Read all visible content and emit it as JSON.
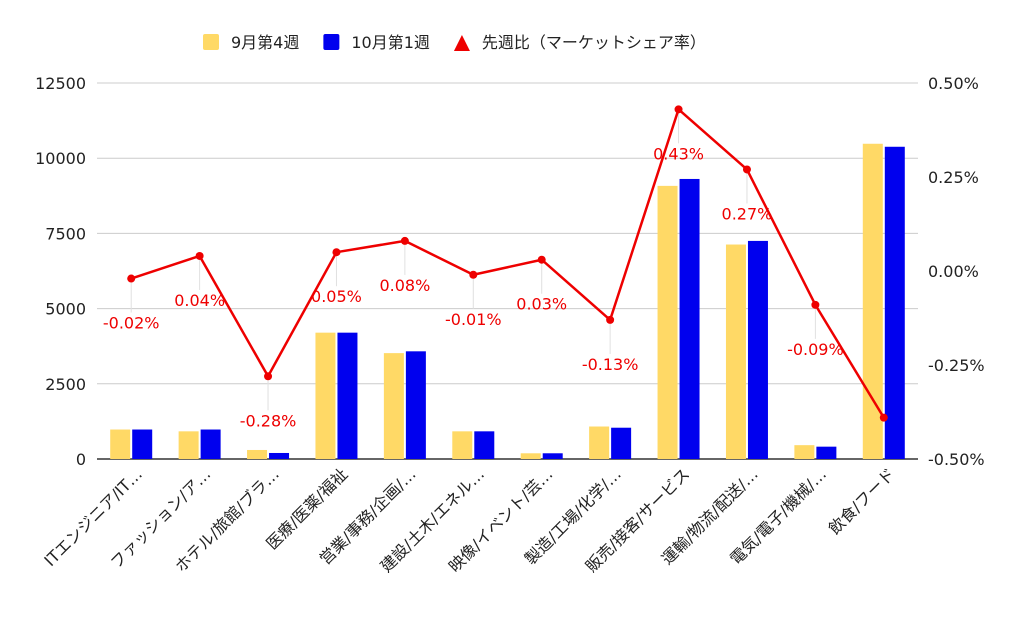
{
  "chart_data": {
    "type": "bar",
    "categories": [
      "ITエンジニア/IT…",
      "ファッション/ア…",
      "ホテル/旅館/ブラ…",
      "医療/医薬/福祉",
      "営業/事務/企画/…",
      "建設/土木/エネル…",
      "映像/イベント/芸…",
      "製造/工場/化学/…",
      "販売/接客/サービス",
      "運輸/物流/配送/…",
      "電気/電子/機械/…",
      "飲食/フード"
    ],
    "series": [
      {
        "name": "9月第4週",
        "type": "bar",
        "axis": "left",
        "color": "#FFD966",
        "values": [
          980,
          920,
          300,
          4200,
          3520,
          920,
          190,
          1080,
          9080,
          7130,
          460,
          10480
        ]
      },
      {
        "name": "10月第1週",
        "type": "bar",
        "axis": "left",
        "color": "#0000EE",
        "values": [
          980,
          980,
          200,
          4200,
          3580,
          920,
          190,
          1040,
          9310,
          7250,
          410,
          10380
        ]
      },
      {
        "name": "先週比（マーケットシェア率）",
        "type": "line",
        "axis": "right",
        "color": "#EE0000",
        "values": [
          -0.02,
          0.04,
          -0.28,
          0.05,
          0.08,
          -0.01,
          0.03,
          -0.13,
          0.43,
          0.27,
          -0.09,
          -0.39
        ],
        "labels": [
          "-0.02%",
          "0.04%",
          "-0.28%",
          "0.05%",
          "0.08%",
          "-0.01%",
          "0.03%",
          "-0.13%",
          "0.43%",
          "0.27%",
          "-0.09%",
          ""
        ]
      }
    ],
    "y_left": {
      "ticks": [
        "0",
        "2500",
        "5000",
        "7500",
        "10000",
        "12500"
      ],
      "min": 0,
      "max": 12500
    },
    "y_right": {
      "ticks": [
        "-0.50%",
        "-0.25%",
        "0.00%",
        "0.25%",
        "0.50%"
      ],
      "min": -0.5,
      "max": 0.5
    },
    "grid": true,
    "legend_position": "top"
  }
}
